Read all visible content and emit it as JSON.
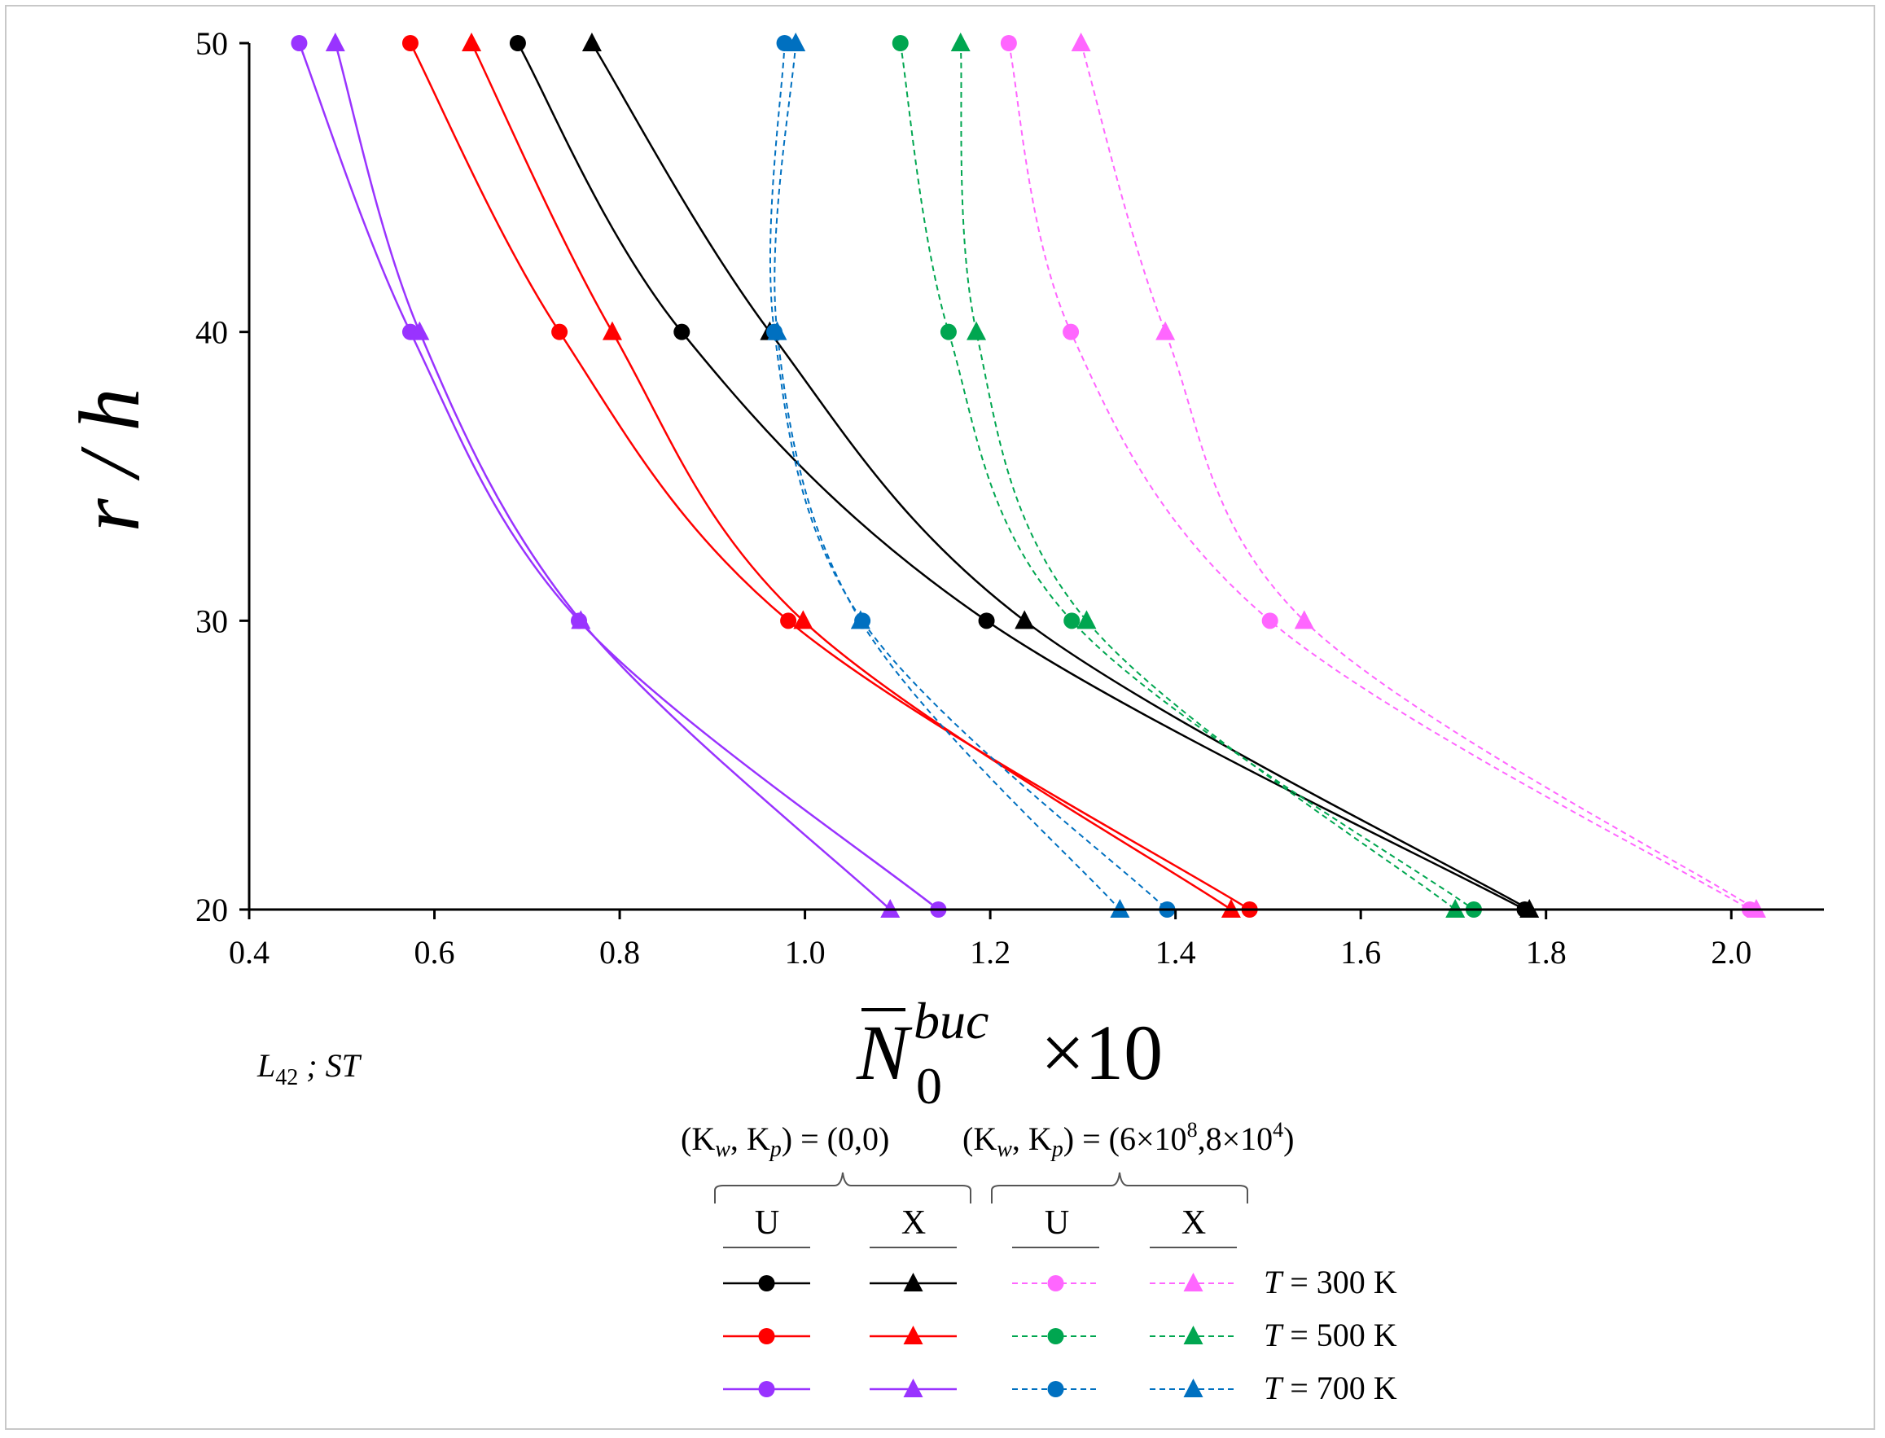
{
  "chart_data": {
    "type": "line",
    "title": "",
    "xlabel_main": "N",
    "xlabel_sup": "buc",
    "xlabel_sub": "0",
    "xlabel_suffix": "×10",
    "ylabel": "r / h",
    "xlim": [
      0.4,
      2.1
    ],
    "ylim": [
      20,
      50
    ],
    "xticks": [
      "0.4",
      "0.6",
      "0.8",
      "1.0",
      "1.2",
      "1.4",
      "1.6",
      "1.8",
      "2.0"
    ],
    "yticks": [
      "20",
      "30",
      "40",
      "50"
    ],
    "grid": false,
    "annotation_main": "L",
    "annotation_sub": "42",
    "annotation_rest": " ; ST",
    "series": [
      {
        "name": "U, (Kw,Kp)=(0,0), T=300 K",
        "color": "#000000",
        "marker": "circle",
        "dashed": false,
        "x": [
          0.69,
          0.867,
          1.196,
          1.777
        ],
        "y": [
          50,
          40,
          30,
          20
        ]
      },
      {
        "name": "X, (Kw,Kp)=(0,0), T=300 K",
        "color": "#000000",
        "marker": "triangle",
        "dashed": false,
        "x": [
          0.77,
          0.962,
          1.237,
          1.782
        ],
        "y": [
          50,
          40,
          30,
          20
        ]
      },
      {
        "name": "U, (Kw,Kp)=(0,0), T=500 K",
        "color": "#ff0000",
        "marker": "circle",
        "dashed": false,
        "x": [
          0.574,
          0.735,
          0.982,
          1.48
        ],
        "y": [
          50,
          40,
          30,
          20
        ]
      },
      {
        "name": "X, (Kw,Kp)=(0,0), T=500 K",
        "color": "#ff0000",
        "marker": "triangle",
        "dashed": false,
        "x": [
          0.64,
          0.792,
          0.998,
          1.46
        ],
        "y": [
          50,
          40,
          30,
          20
        ]
      },
      {
        "name": "U, (Kw,Kp)=(0,0), T=700 K",
        "color": "#9933ff",
        "marker": "circle",
        "dashed": false,
        "x": [
          0.454,
          0.574,
          0.756,
          1.144
        ],
        "y": [
          50,
          40,
          30,
          20
        ]
      },
      {
        "name": "X, (Kw,Kp)=(0,0), T=700 K",
        "color": "#9933ff",
        "marker": "triangle",
        "dashed": false,
        "x": [
          0.493,
          0.584,
          0.758,
          1.092
        ],
        "y": [
          50,
          40,
          30,
          20
        ]
      },
      {
        "name": "U, (Kw,Kp)=(6e8,8e4), T=300 K",
        "color": "#ff66ff",
        "marker": "circle",
        "dashed": true,
        "x": [
          1.22,
          1.287,
          1.502,
          2.02
        ],
        "y": [
          50,
          40,
          30,
          20
        ]
      },
      {
        "name": "X, (Kw,Kp)=(6e8,8e4), T=300 K",
        "color": "#ff66ff",
        "marker": "triangle",
        "dashed": true,
        "x": [
          1.298,
          1.389,
          1.539,
          2.027
        ],
        "y": [
          50,
          40,
          30,
          20
        ]
      },
      {
        "name": "U, (Kw,Kp)=(6e8,8e4), T=500 K",
        "color": "#00a650",
        "marker": "circle",
        "dashed": true,
        "x": [
          1.103,
          1.155,
          1.288,
          1.722
        ],
        "y": [
          50,
          40,
          30,
          20
        ]
      },
      {
        "name": "X, (Kw,Kp)=(6e8,8e4), T=500 K",
        "color": "#00a650",
        "marker": "triangle",
        "dashed": true,
        "x": [
          1.168,
          1.185,
          1.304,
          1.702
        ],
        "y": [
          50,
          40,
          30,
          20
        ]
      },
      {
        "name": "U, (Kw,Kp)=(6e8,8e4), T=700 K",
        "color": "#0070c0",
        "marker": "circle",
        "dashed": true,
        "x": [
          0.978,
          0.967,
          1.062,
          1.391
        ],
        "y": [
          50,
          40,
          30,
          20
        ]
      },
      {
        "name": "X, (Kw,Kp)=(6e8,8e4), T=700 K",
        "color": "#0070c0",
        "marker": "triangle",
        "dashed": true,
        "x": [
          0.99,
          0.97,
          1.06,
          1.34
        ],
        "y": [
          50,
          40,
          30,
          20
        ]
      }
    ]
  },
  "legend": {
    "group1_label": "(K",
    "group1_w": "w",
    "group1_mid": ", K",
    "group1_p": "p",
    "group1_rest": ") = (0,0)",
    "group2_label": "(K",
    "group2_w": "w",
    "group2_mid": ", K",
    "group2_p": "p",
    "group2_rest_a": ") = (6×10",
    "group2_exp8": "8",
    "group2_rest_b": ",8×10",
    "group2_exp4": "4",
    "group2_rest_c": ")",
    "col_u": "U",
    "col_x": "X",
    "t_label": "T",
    "rows": [
      " = 300 K",
      " = 500 K",
      " = 700 K"
    ]
  }
}
